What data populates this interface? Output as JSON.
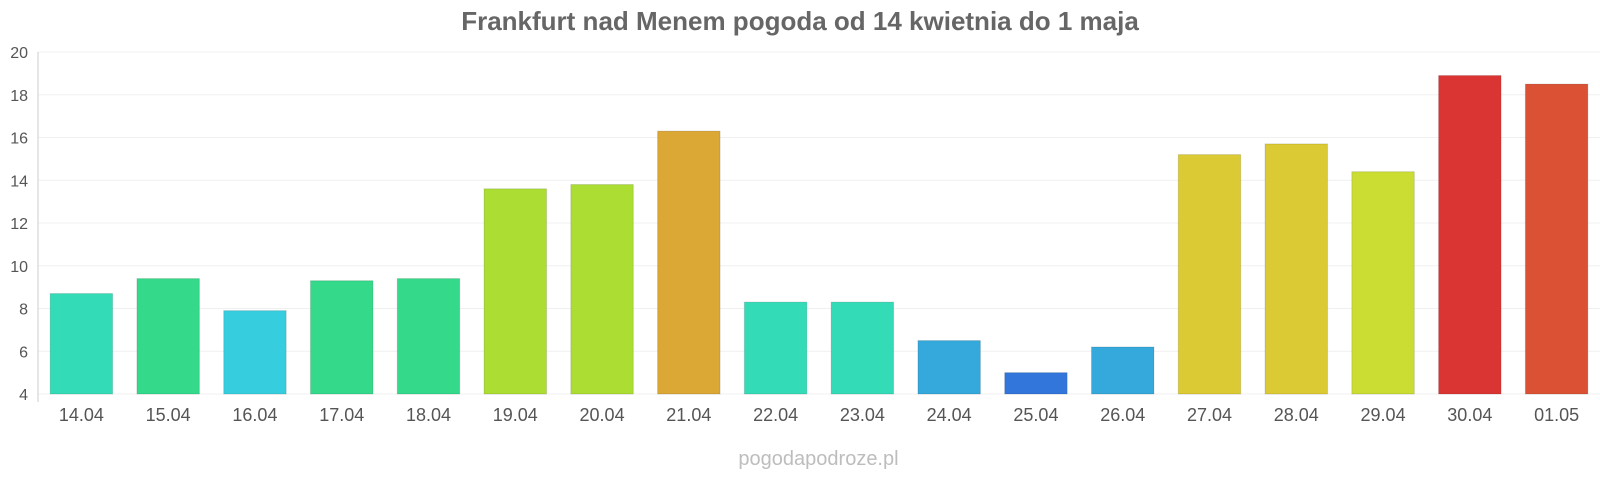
{
  "chart_data": {
    "type": "bar",
    "title": "Frankfurt nad Menem pogoda od 14 kwietnia do 1 maja",
    "categories": [
      "14.04",
      "15.04",
      "16.04",
      "17.04",
      "18.04",
      "19.04",
      "20.04",
      "21.04",
      "22.04",
      "23.04",
      "24.04",
      "25.04",
      "26.04",
      "27.04",
      "28.04",
      "29.04",
      "30.04",
      "01.05"
    ],
    "values": [
      8.7,
      9.4,
      7.9,
      9.3,
      9.4,
      13.6,
      13.8,
      16.3,
      8.3,
      8.3,
      6.5,
      5.0,
      6.2,
      15.2,
      15.7,
      14.4,
      18.9,
      18.5
    ],
    "colors": [
      "#34dbb7",
      "#34d98a",
      "#36cede",
      "#34d98a",
      "#34d98a",
      "#abdd33",
      "#abdd33",
      "#dba735",
      "#34dbb7",
      "#34dbb7",
      "#35a8dc",
      "#3276dc",
      "#35a8dc",
      "#dbca33",
      "#dbca33",
      "#cbdc33",
      "#db3533",
      "#da5133"
    ],
    "xlabel": "",
    "ylabel": "",
    "ylim": [
      4,
      20
    ],
    "yticks": [
      4,
      6,
      8,
      10,
      12,
      14,
      16,
      18,
      20
    ],
    "grid": true,
    "legend": "none"
  },
  "watermark": "pogodapodroze.pl"
}
